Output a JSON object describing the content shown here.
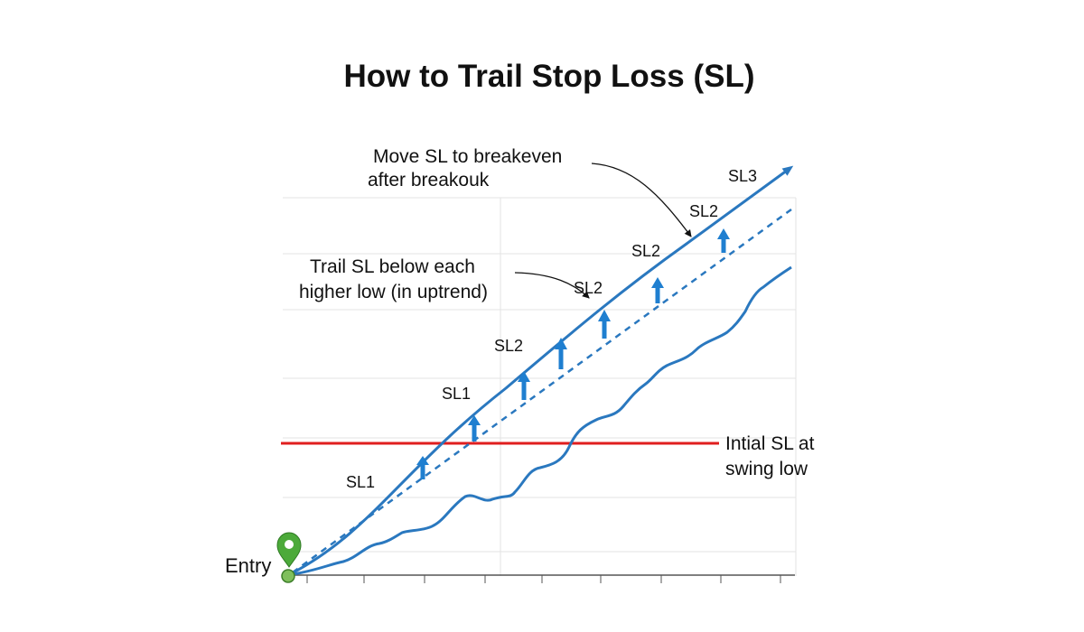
{
  "title": "How to Trail Stop Loss (SL)",
  "annotations": {
    "breakeven_line1": "Move SL to breakeven",
    "breakeven_line2": "after breakouk",
    "trail_line1": "Trail SL below each",
    "trail_line2": "higher low (in uptrend)",
    "initial_line1": "Intial SL at",
    "initial_line2": "swing low"
  },
  "entry_label": "Entry",
  "sl_labels": [
    "SL1",
    "SL1",
    "SL2",
    "SL2",
    "SL2",
    "SL2",
    "SL3"
  ],
  "colors": {
    "trend_line": "#2a78bf",
    "trail_line": "#2a78bf",
    "price_line": "#2a78bf",
    "initial_sl": "#e01e1e",
    "arrows": "#1f7fd0",
    "entry_marker": "#4caa3a",
    "grid": "#e3e3e3"
  },
  "icons": {
    "entry": "map-pin-icon",
    "trail_step": "arrow-up-icon"
  }
}
